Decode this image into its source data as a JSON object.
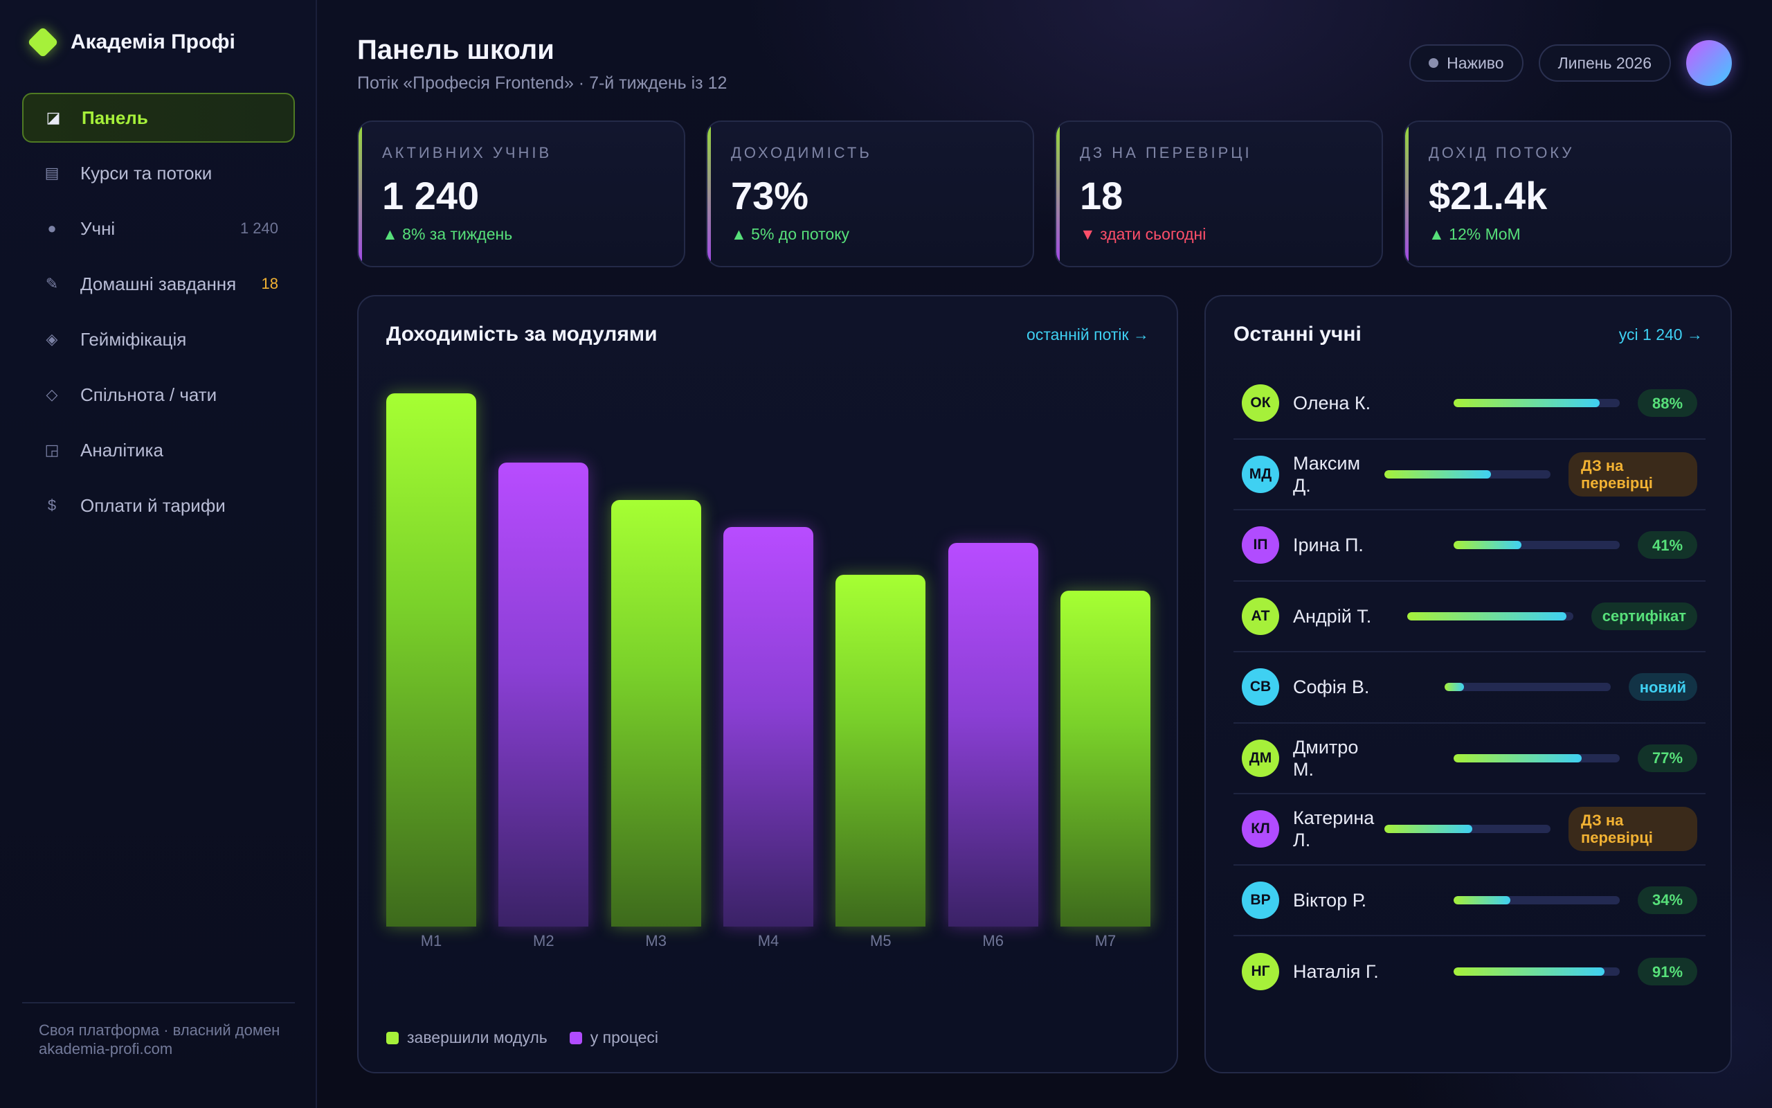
{
  "brand": {
    "name": "Академія Профі"
  },
  "sidebar": {
    "items": [
      {
        "icon": "◪",
        "label": "Панель",
        "count": "",
        "active": true
      },
      {
        "icon": "▤",
        "label": "Курси та потоки",
        "count": ""
      },
      {
        "icon": "●",
        "label": "Учні",
        "count": "1 240"
      },
      {
        "icon": "✎",
        "label": "Домашні завдання",
        "count": "18"
      },
      {
        "icon": "◈",
        "label": "Гейміфікація",
        "count": ""
      },
      {
        "icon": "◇",
        "label": "Спільнота / чати",
        "count": ""
      },
      {
        "icon": "◲",
        "label": "Аналітика",
        "count": ""
      },
      {
        "icon": "$",
        "label": "Оплати й тарифи",
        "count": ""
      }
    ],
    "footer": "Своя платформа · власний домен akademia-profi.com"
  },
  "header": {
    "title": "Панель школи",
    "subtitle": "Потік «Професія Frontend» · 7-й тиждень із 12",
    "live_label": "Наживо",
    "period_label": "Липень 2026"
  },
  "kpis": [
    {
      "label": "Активних учнів",
      "value": "1 240",
      "delta": "▲ 8% за тиждень",
      "direction": "up"
    },
    {
      "label": "Доходимість",
      "value": "73%",
      "delta": "▲ 5% до потоку",
      "direction": "up"
    },
    {
      "label": "ДЗ на перевірці",
      "value": "18",
      "delta": "▼ здати сьогодні",
      "direction": "down"
    },
    {
      "label": "Дохід потоку",
      "value": "$21.4k",
      "delta": "▲ 12% MoM",
      "direction": "up"
    }
  ],
  "chart_panel": {
    "title": "Доходимість за модулями",
    "link": "останній потік →"
  },
  "chart_data": {
    "type": "bar",
    "categories": [
      "M1",
      "M2",
      "M3",
      "M4",
      "M5",
      "M6",
      "M7"
    ],
    "values": [
      100,
      87,
      80,
      75,
      66,
      72,
      63
    ],
    "bar_status": [
      "done",
      "prog",
      "done",
      "prog",
      "done",
      "prog",
      "done"
    ],
    "series": [
      {
        "name": "завершили модуль",
        "color": "#a6f03a"
      },
      {
        "name": "у процесі",
        "color": "#b14cff"
      }
    ],
    "ylim": [
      0,
      100
    ],
    "grid": false,
    "legend_position": "bottom-left"
  },
  "students_panel": {
    "title": "Останні учні",
    "link": "усі 1 240 →",
    "students": [
      {
        "initials": "ОК",
        "name": "Олена К.",
        "progress": 0.88,
        "badge": "88%",
        "badge_type": "pct",
        "color": "#a6f03a"
      },
      {
        "initials": "МД",
        "name": "Максим Д.",
        "progress": 0.64,
        "badge": "ДЗ на перевірці",
        "badge_type": "hw",
        "color": "#3fd0f2"
      },
      {
        "initials": "ІП",
        "name": "Ірина П.",
        "progress": 0.41,
        "badge": "41%",
        "badge_type": "pct",
        "color": "#b14cff"
      },
      {
        "initials": "АТ",
        "name": "Андрій Т.",
        "progress": 0.96,
        "badge": "сертифікат",
        "badge_type": "cert",
        "color": "#a6f03a"
      },
      {
        "initials": "СВ",
        "name": "Софія В.",
        "progress": 0.12,
        "badge": "новий",
        "badge_type": "new",
        "color": "#3fd0f2"
      },
      {
        "initials": "ДМ",
        "name": "Дмитро М.",
        "progress": 0.77,
        "badge": "77%",
        "badge_type": "pct",
        "color": "#a6f03a"
      },
      {
        "initials": "КЛ",
        "name": "Катерина Л.",
        "progress": 0.53,
        "badge": "ДЗ на перевірці",
        "badge_type": "hw",
        "color": "#b14cff"
      },
      {
        "initials": "ВР",
        "name": "Віктор Р.",
        "progress": 0.34,
        "badge": "34%",
        "badge_type": "pct",
        "color": "#3fd0f2"
      },
      {
        "initials": "НГ",
        "name": "Наталія Г.",
        "progress": 0.91,
        "badge": "91%",
        "badge_type": "pct",
        "color": "#a6f03a"
      }
    ]
  }
}
